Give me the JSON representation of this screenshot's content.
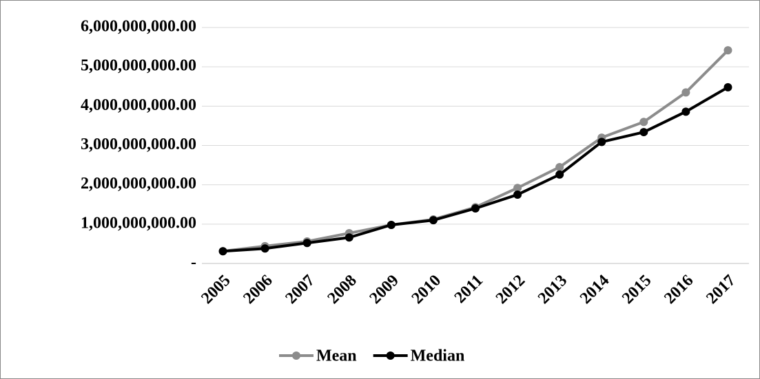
{
  "chart_data": {
    "type": "line",
    "categories": [
      "2005",
      "2006",
      "2007",
      "2008",
      "2009",
      "2010",
      "2011",
      "2012",
      "2013",
      "2014",
      "2015",
      "2016",
      "2017"
    ],
    "series": [
      {
        "name": "Mean",
        "color": "#8c8c8c",
        "values": [
          310000000,
          440000000,
          560000000,
          770000000,
          980000000,
          1120000000,
          1430000000,
          1920000000,
          2450000000,
          3200000000,
          3600000000,
          4350000000,
          5420000000
        ]
      },
      {
        "name": "Median",
        "color": "#000000",
        "values": [
          310000000,
          380000000,
          520000000,
          660000000,
          980000000,
          1100000000,
          1400000000,
          1750000000,
          2260000000,
          3090000000,
          3340000000,
          3860000000,
          4480000000
        ]
      }
    ],
    "ylim": [
      0,
      6000000000
    ],
    "yticks": [
      {
        "value": 0,
        "label": "-"
      },
      {
        "value": 1000000000,
        "label": "1,000,000,000.00"
      },
      {
        "value": 2000000000,
        "label": "2,000,000,000.00"
      },
      {
        "value": 3000000000,
        "label": "3,000,000,000.00"
      },
      {
        "value": 4000000000,
        "label": "4,000,000,000.00"
      },
      {
        "value": 5000000000,
        "label": "5,000,000,000.00"
      },
      {
        "value": 6000000000,
        "label": "6,000,000,000.00"
      }
    ],
    "grid": true,
    "legend": "bottom"
  }
}
